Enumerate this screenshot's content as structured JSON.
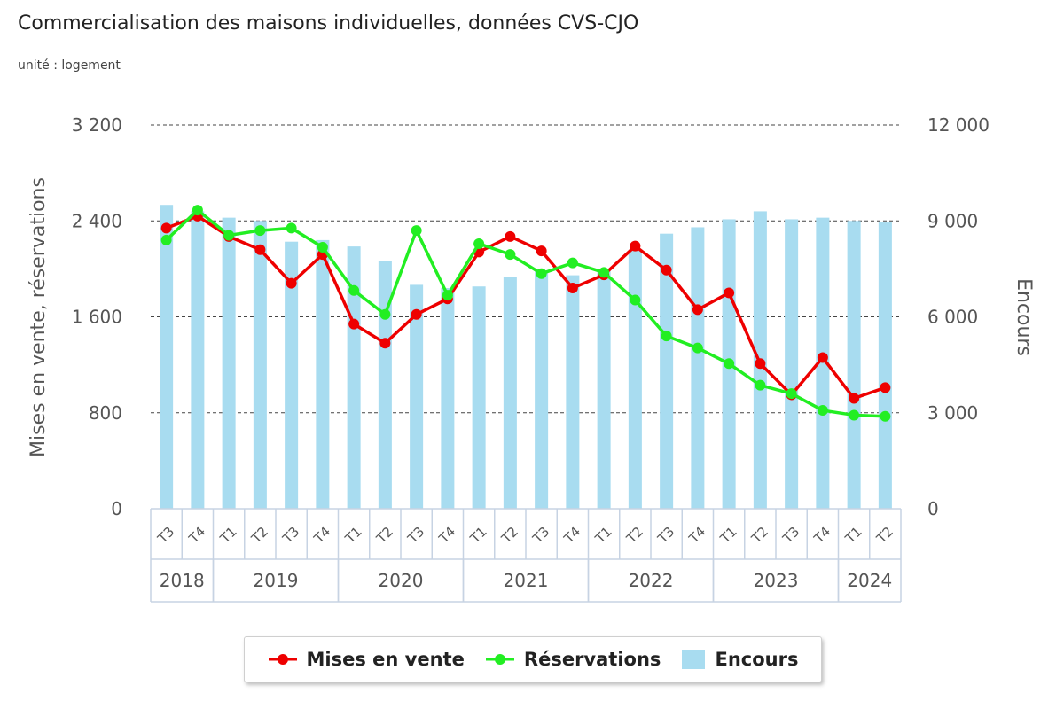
{
  "title": "Commercialisation des maisons individuelles, données CVS-CJO",
  "subtitle": "unité : logement",
  "colors": {
    "mises": "#ee0000",
    "reservations": "#22ee22",
    "encours": "#a8dcf0",
    "grid": "#444444"
  },
  "legend": {
    "mises": "Mises en vente",
    "reservations": "Réservations",
    "encours": "Encours"
  },
  "chart_data": {
    "type": "bar",
    "y_left": {
      "label": "Mises en vente, réservations",
      "range": [
        0,
        3200
      ],
      "ticks": [
        "0",
        "800",
        "1 600",
        "2 400",
        "3 200"
      ],
      "tick_values": [
        0,
        800,
        1600,
        2400,
        3200
      ]
    },
    "y_right": {
      "label": "Encours",
      "range": [
        0,
        12000
      ],
      "ticks": [
        "0",
        "3 000",
        "6 000",
        "9 000",
        "12 000"
      ],
      "tick_values": [
        0,
        3000,
        6000,
        9000,
        12000
      ]
    },
    "categories": [
      "T3",
      "T4",
      "T1",
      "T2",
      "T3",
      "T4",
      "T1",
      "T2",
      "T3",
      "T4",
      "T1",
      "T2",
      "T3",
      "T4",
      "T1",
      "T2",
      "T3",
      "T4",
      "T1",
      "T2",
      "T3",
      "T4",
      "T1",
      "T2"
    ],
    "years": [
      {
        "label": "2018",
        "start": 0,
        "count": 2
      },
      {
        "label": "2019",
        "start": 2,
        "count": 4
      },
      {
        "label": "2020",
        "start": 6,
        "count": 4
      },
      {
        "label": "2021",
        "start": 10,
        "count": 4
      },
      {
        "label": "2022",
        "start": 14,
        "count": 4
      },
      {
        "label": "2023",
        "start": 18,
        "count": 4
      },
      {
        "label": "2024",
        "start": 22,
        "count": 2
      }
    ],
    "grid": true,
    "legend_position": "bottom",
    "series": [
      {
        "name": "Mises en vente",
        "type": "line",
        "axis": "left",
        "values": [
          2340,
          2440,
          2270,
          2160,
          1880,
          2120,
          1540,
          1380,
          1620,
          1750,
          2140,
          2270,
          2150,
          1840,
          1950,
          2190,
          1990,
          1660,
          1800,
          1210,
          950,
          1260,
          920,
          1010
        ]
      },
      {
        "name": "Réservations",
        "type": "line",
        "axis": "left",
        "values": [
          2240,
          2490,
          2280,
          2320,
          2340,
          2180,
          1820,
          1620,
          2320,
          1780,
          2210,
          2120,
          1960,
          2050,
          1970,
          1740,
          1440,
          1340,
          1210,
          1030,
          960,
          820,
          780,
          770
        ]
      },
      {
        "name": "Encours",
        "type": "bar",
        "axis": "right",
        "values": [
          9500,
          9300,
          9100,
          9000,
          8350,
          8400,
          8200,
          7750,
          7000,
          6900,
          6950,
          7250,
          7450,
          7300,
          7450,
          8100,
          8600,
          8800,
          9050,
          9300,
          9050,
          9100,
          9000,
          8950
        ]
      }
    ]
  }
}
